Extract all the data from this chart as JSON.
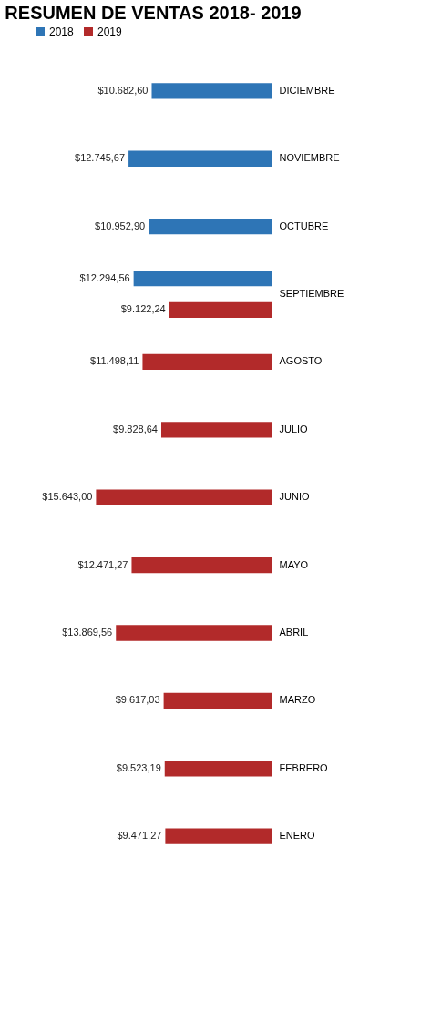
{
  "chart_data": {
    "type": "bar",
    "orientation": "horizontal",
    "title": "RESUMEN DE VENTAS 2018- 2019",
    "categories": [
      "DICIEMBRE",
      "NOVIEMBRE",
      "OCTUBRE",
      "SEPTIEMBRE",
      "AGOSTO",
      "JULIO",
      "JUNIO",
      "MAYO",
      "ABRIL",
      "MARZO",
      "FEBRERO",
      "ENERO"
    ],
    "series": [
      {
        "name": "2018",
        "color": "#2e75b6",
        "values": [
          10682.6,
          12745.67,
          10952.9,
          12294.56,
          null,
          null,
          null,
          null,
          null,
          null,
          null,
          null
        ],
        "value_labels": [
          "$10.682,60",
          "$12.745,67",
          "$10.952,90",
          "$12.294,56",
          null,
          null,
          null,
          null,
          null,
          null,
          null,
          null
        ]
      },
      {
        "name": "2019",
        "color": "#b22a2a",
        "values": [
          null,
          null,
          null,
          9122.24,
          11498.11,
          9828.64,
          15643.0,
          12471.27,
          13869.56,
          9617.03,
          9523.19,
          9471.27
        ],
        "value_labels": [
          null,
          null,
          null,
          "$9.122,24",
          "$11.498,11",
          "$9.828,64",
          "$15.643,00",
          "$12.471,27",
          "$13.869,56",
          "$9.617,03",
          "$9.523,19",
          "$9.471,27"
        ]
      }
    ],
    "legend": "top",
    "grid": false
  }
}
